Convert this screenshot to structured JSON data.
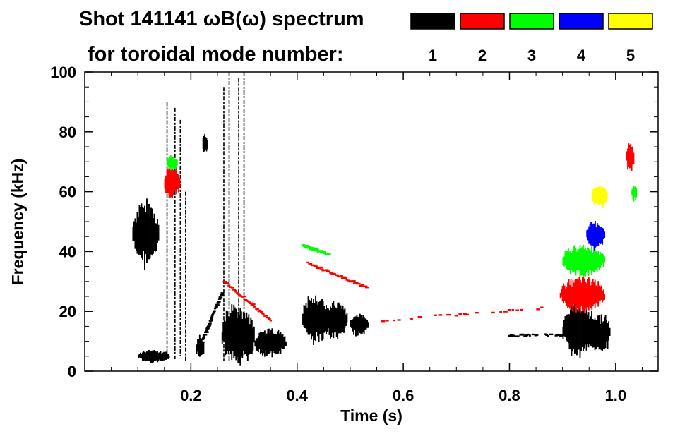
{
  "chart_data": {
    "type": "spectrogram",
    "title": "Shot 141141 ωB(ω) spectrum",
    "subtitle": "for toroidal mode number:",
    "xlabel": "Time (s)",
    "ylabel": "Frequency (kHz)",
    "xlim": [
      0.0,
      1.08
    ],
    "ylim": [
      0,
      100
    ],
    "xticks": [
      0.2,
      0.4,
      0.6,
      0.8,
      1.0
    ],
    "xtick_labels": [
      "0.2",
      "0.4",
      "0.6",
      "0.8",
      "1.0"
    ],
    "yticks": [
      0,
      20,
      40,
      60,
      80,
      100
    ],
    "ytick_labels": [
      "0",
      "20",
      "40",
      "60",
      "80",
      "100"
    ],
    "legend": [
      {
        "n": "1",
        "color": "#000000"
      },
      {
        "n": "2",
        "color": "#ff0000"
      },
      {
        "n": "3",
        "color": "#00ff00"
      },
      {
        "n": "4",
        "color": "#0000ff"
      },
      {
        "n": "5",
        "color": "#ffff00"
      }
    ],
    "features": [
      {
        "mode": 1,
        "kind": "blob",
        "t": [
          0.09,
          0.14
        ],
        "f": [
          36,
          56
        ]
      },
      {
        "mode": 1,
        "kind": "blob",
        "t": [
          0.1,
          0.16
        ],
        "f": [
          3,
          7
        ]
      },
      {
        "mode": 1,
        "kind": "blob",
        "t": [
          0.258,
          0.32
        ],
        "f": [
          2,
          22
        ]
      },
      {
        "mode": 1,
        "kind": "blob",
        "t": [
          0.32,
          0.38
        ],
        "f": [
          5,
          14
        ]
      },
      {
        "mode": 1,
        "kind": "blob",
        "t": [
          0.41,
          0.46
        ],
        "f": [
          10,
          25
        ]
      },
      {
        "mode": 1,
        "kind": "blob",
        "t": [
          0.45,
          0.495
        ],
        "f": [
          11,
          23
        ]
      },
      {
        "mode": 1,
        "kind": "blob",
        "t": [
          0.5,
          0.535
        ],
        "f": [
          12,
          19
        ]
      },
      {
        "mode": 1,
        "kind": "blob",
        "t": [
          0.9,
          0.96
        ],
        "f": [
          5,
          23
        ]
      },
      {
        "mode": 1,
        "kind": "blob",
        "t": [
          0.95,
          0.99
        ],
        "f": [
          6,
          19
        ]
      },
      {
        "mode": 1,
        "kind": "blob",
        "t": [
          0.21,
          0.225
        ],
        "f": [
          4,
          12
        ]
      },
      {
        "mode": 1,
        "kind": "blob",
        "t": [
          0.222,
          0.232
        ],
        "f": [
          73,
          79
        ]
      },
      {
        "mode": 1,
        "kind": "spike",
        "t": 0.155,
        "f": [
          5,
          90
        ]
      },
      {
        "mode": 1,
        "kind": "spike",
        "t": 0.17,
        "f": [
          4,
          88
        ]
      },
      {
        "mode": 1,
        "kind": "spike",
        "t": 0.18,
        "f": [
          5,
          84
        ]
      },
      {
        "mode": 1,
        "kind": "spike",
        "t": 0.19,
        "f": [
          3,
          60
        ]
      },
      {
        "mode": 1,
        "kind": "spike",
        "t": 0.262,
        "f": [
          3,
          95
        ]
      },
      {
        "mode": 1,
        "kind": "spike",
        "t": 0.272,
        "f": [
          3,
          100
        ]
      },
      {
        "mode": 1,
        "kind": "spike",
        "t": 0.29,
        "f": [
          5,
          98
        ]
      },
      {
        "mode": 1,
        "kind": "spike",
        "t": 0.3,
        "f": [
          5,
          100
        ]
      },
      {
        "mode": 1,
        "kind": "chirp",
        "t": [
          0.22,
          0.258
        ],
        "f": [
          10,
          26
        ]
      },
      {
        "mode": 1,
        "kind": "line",
        "t": [
          0.8,
          0.9
        ],
        "f": [
          12,
          12
        ]
      },
      {
        "mode": 2,
        "kind": "chirp",
        "t": [
          0.262,
          0.35
        ],
        "f": [
          30,
          17
        ]
      },
      {
        "mode": 2,
        "kind": "chirp",
        "t": [
          0.42,
          0.53
        ],
        "f": [
          36,
          28
        ]
      },
      {
        "mode": 2,
        "kind": "line",
        "t": [
          0.56,
          0.86
        ],
        "f": [
          17,
          21
        ]
      },
      {
        "mode": 2,
        "kind": "blob",
        "t": [
          0.895,
          0.98
        ],
        "f": [
          20,
          31
        ]
      },
      {
        "mode": 2,
        "kind": "blob",
        "t": [
          0.15,
          0.18
        ],
        "f": [
          58,
          68
        ]
      },
      {
        "mode": 2,
        "kind": "blob",
        "t": [
          1.02,
          1.035
        ],
        "f": [
          67,
          76
        ]
      },
      {
        "mode": 3,
        "kind": "blob",
        "t": [
          0.9,
          0.98
        ],
        "f": [
          32,
          42
        ]
      },
      {
        "mode": 3,
        "kind": "chirp",
        "t": [
          0.41,
          0.46
        ],
        "f": [
          42,
          39
        ]
      },
      {
        "mode": 3,
        "kind": "blob",
        "t": [
          1.03,
          1.04
        ],
        "f": [
          57,
          62
        ]
      },
      {
        "mode": 3,
        "kind": "blob",
        "t": [
          0.155,
          0.175
        ],
        "f": [
          67,
          72
        ]
      },
      {
        "mode": 4,
        "kind": "blob",
        "t": [
          0.945,
          0.98
        ],
        "f": [
          41,
          50
        ]
      },
      {
        "mode": 5,
        "kind": "blob",
        "t": [
          0.955,
          0.985
        ],
        "f": [
          55,
          62
        ]
      }
    ]
  }
}
